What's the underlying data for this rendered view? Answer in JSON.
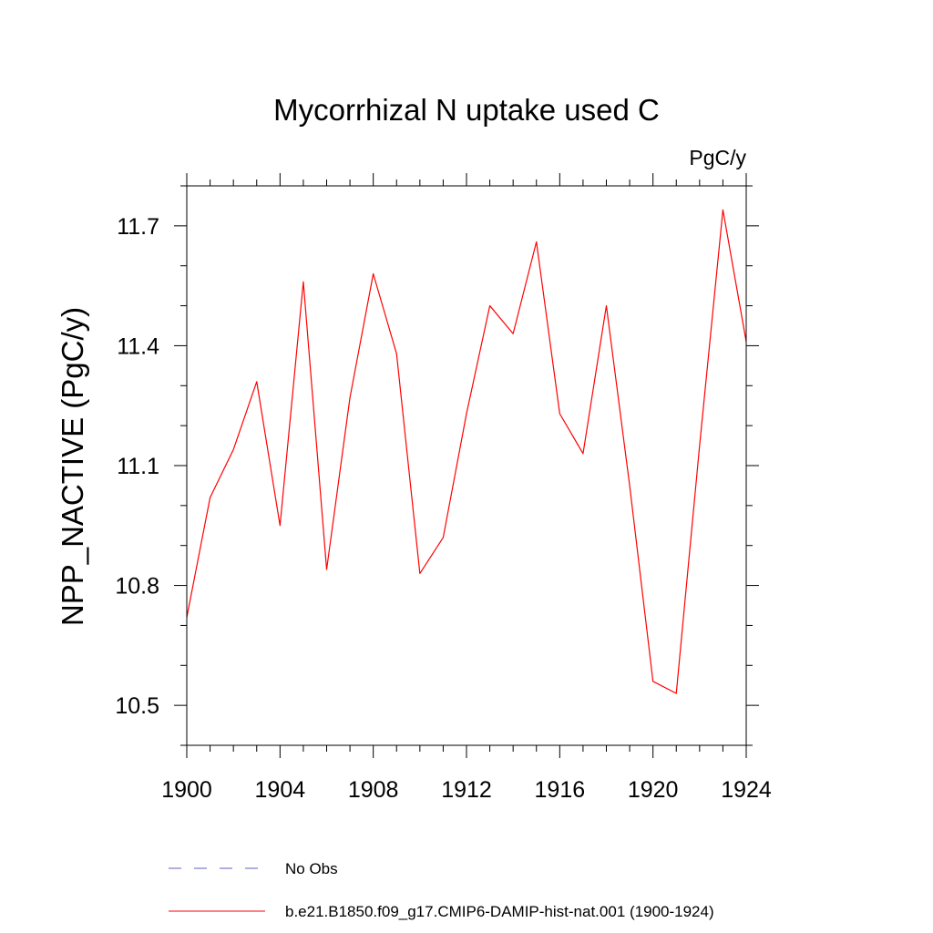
{
  "chart_data": {
    "type": "line",
    "title": "Mycorrhizal N uptake used C",
    "units_label": "PgC/y",
    "ylabel": "NPP_NACTIVE  (PgC/y)",
    "xlabel": "",
    "xlim": [
      1900,
      1924
    ],
    "ylim": [
      10.4,
      11.8
    ],
    "x_ticks": [
      1900,
      1904,
      1908,
      1912,
      1916,
      1920,
      1924
    ],
    "x_tick_labels": [
      "1900",
      "1904",
      "1908",
      "1912",
      "1916",
      "1920",
      "1924"
    ],
    "y_ticks": [
      10.5,
      10.8,
      11.1,
      11.4,
      11.7
    ],
    "y_tick_labels": [
      "10.5",
      "10.8",
      "11.1",
      "11.4",
      "11.7"
    ],
    "grid": false,
    "legend_position": "bottom",
    "series": [
      {
        "name": "b.e21.B1850.f09_g17.CMIP6-DAMIP-hist-nat.001 (1900-1924)",
        "color": "#ff0000",
        "style": "solid",
        "x": [
          1900,
          1901,
          1902,
          1903,
          1904,
          1905,
          1906,
          1907,
          1908,
          1909,
          1910,
          1911,
          1912,
          1913,
          1914,
          1915,
          1916,
          1917,
          1918,
          1919,
          1920,
          1921,
          1922,
          1923,
          1924
        ],
        "y": [
          10.72,
          11.02,
          11.14,
          11.31,
          10.95,
          11.56,
          10.84,
          11.27,
          11.58,
          11.38,
          10.83,
          10.92,
          11.23,
          11.5,
          11.43,
          11.66,
          11.23,
          11.13,
          11.5,
          11.05,
          10.56,
          10.53,
          11.15,
          11.74,
          11.41
        ]
      }
    ],
    "legend": [
      {
        "label": "No Obs",
        "color": "#6060c0",
        "style": "dashed"
      },
      {
        "label": "b.e21.B1850.f09_g17.CMIP6-DAMIP-hist-nat.001 (1900-1924)",
        "color": "#ff0000",
        "style": "solid"
      }
    ]
  }
}
